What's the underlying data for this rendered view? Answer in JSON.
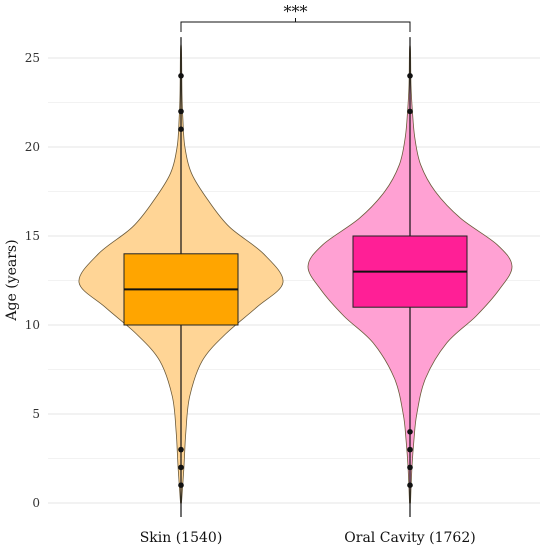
{
  "chart_data": {
    "type": "violin",
    "ylabel": "Age (years)",
    "xlabel": "",
    "ylim": [
      -0.7,
      26.2
    ],
    "yticks": [
      0,
      5,
      10,
      15,
      20,
      25
    ],
    "grid": true,
    "groups": [
      {
        "label": "Skin (1540)",
        "fill": "#FFA500",
        "violin_fill": "#FFD596",
        "box": {
          "q1": 10,
          "median": 12,
          "q3": 14,
          "whisker_low": 0,
          "whisker_high": 25.5
        },
        "outliers": [
          24,
          22,
          21,
          3,
          2,
          1
        ],
        "density": [
          [
            0,
            0.5
          ],
          [
            2,
            3
          ],
          [
            4,
            5
          ],
          [
            6,
            9
          ],
          [
            8,
            22
          ],
          [
            9.5,
            46
          ],
          [
            11,
            78
          ],
          [
            12.4,
            105
          ],
          [
            14,
            85
          ],
          [
            15.5,
            50
          ],
          [
            17,
            28
          ],
          [
            18.5,
            11
          ],
          [
            20,
            4
          ],
          [
            21.5,
            2
          ],
          [
            23,
            1
          ],
          [
            25.5,
            0.5
          ]
        ]
      },
      {
        "label": "Oral Cavity (1762)",
        "fill": "#FF1F96",
        "violin_fill": "#FFA1D3",
        "box": {
          "q1": 11,
          "median": 13,
          "q3": 15,
          "whisker_low": 0,
          "whisker_high": 25.5
        },
        "outliers": [
          24,
          22,
          4,
          3,
          2,
          1
        ],
        "density": [
          [
            0,
            0.5
          ],
          [
            2,
            2
          ],
          [
            3.5,
            4
          ],
          [
            5,
            7
          ],
          [
            7,
            16
          ],
          [
            9,
            38
          ],
          [
            10.5,
            68
          ],
          [
            12,
            92
          ],
          [
            13.3,
            105
          ],
          [
            14.5,
            90
          ],
          [
            16,
            52
          ],
          [
            17.5,
            26
          ],
          [
            19,
            11
          ],
          [
            20.5,
            5
          ],
          [
            22,
            2.5
          ],
          [
            23.5,
            1
          ],
          [
            25.5,
            0.5
          ]
        ]
      }
    ],
    "annotations": [
      {
        "type": "significance",
        "between": [
          0,
          1
        ],
        "y": 26.2,
        "label": "***"
      }
    ]
  }
}
